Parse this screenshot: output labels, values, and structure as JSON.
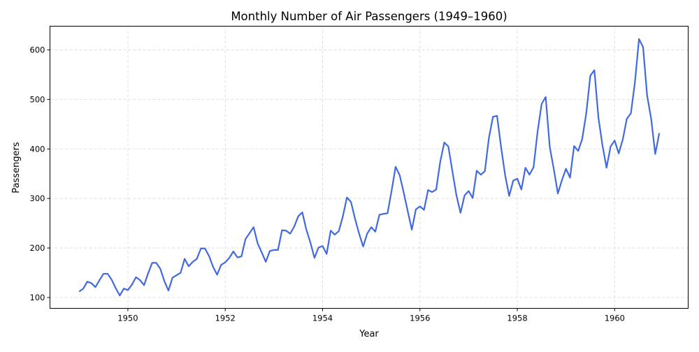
{
  "chart_data": {
    "type": "line",
    "title": "Monthly Number of Air Passengers (1949–1960)",
    "xlabel": "Year",
    "ylabel": "Passengers",
    "xlim": [
      1948.4,
      1961.51
    ],
    "ylim": [
      78.1,
      647.9
    ],
    "xticks": [
      1950,
      1952,
      1954,
      1956,
      1958,
      1960
    ],
    "yticks": [
      100,
      200,
      300,
      400,
      500,
      600
    ],
    "grid": true,
    "series": [
      {
        "name": "Passengers",
        "color": "#4169e1",
        "start_year": 1949,
        "step": 0.083333,
        "values": [
          112,
          118,
          132,
          129,
          121,
          135,
          148,
          148,
          136,
          119,
          104,
          118,
          115,
          126,
          141,
          135,
          125,
          149,
          170,
          170,
          158,
          133,
          114,
          140,
          145,
          150,
          178,
          163,
          172,
          178,
          199,
          199,
          184,
          162,
          146,
          166,
          171,
          180,
          193,
          181,
          183,
          218,
          230,
          242,
          209,
          191,
          172,
          194,
          196,
          196,
          236,
          235,
          229,
          243,
          264,
          272,
          237,
          211,
          180,
          201,
          204,
          188,
          235,
          227,
          234,
          264,
          302,
          293,
          259,
          229,
          203,
          229,
          242,
          233,
          267,
          269,
          270,
          315,
          364,
          347,
          312,
          274,
          237,
          278,
          284,
          277,
          317,
          313,
          318,
          374,
          413,
          405,
          355,
          306,
          271,
          306,
          315,
          301,
          356,
          348,
          355,
          422,
          465,
          467,
          404,
          347,
          305,
          336,
          340,
          318,
          362,
          348,
          363,
          435,
          491,
          505,
          404,
          359,
          310,
          337,
          360,
          342,
          406,
          396,
          420,
          472,
          548,
          559,
          463,
          407,
          362,
          405,
          417,
          391,
          419,
          461,
          472,
          535,
          622,
          606,
          508,
          461,
          390,
          432
        ]
      }
    ]
  }
}
